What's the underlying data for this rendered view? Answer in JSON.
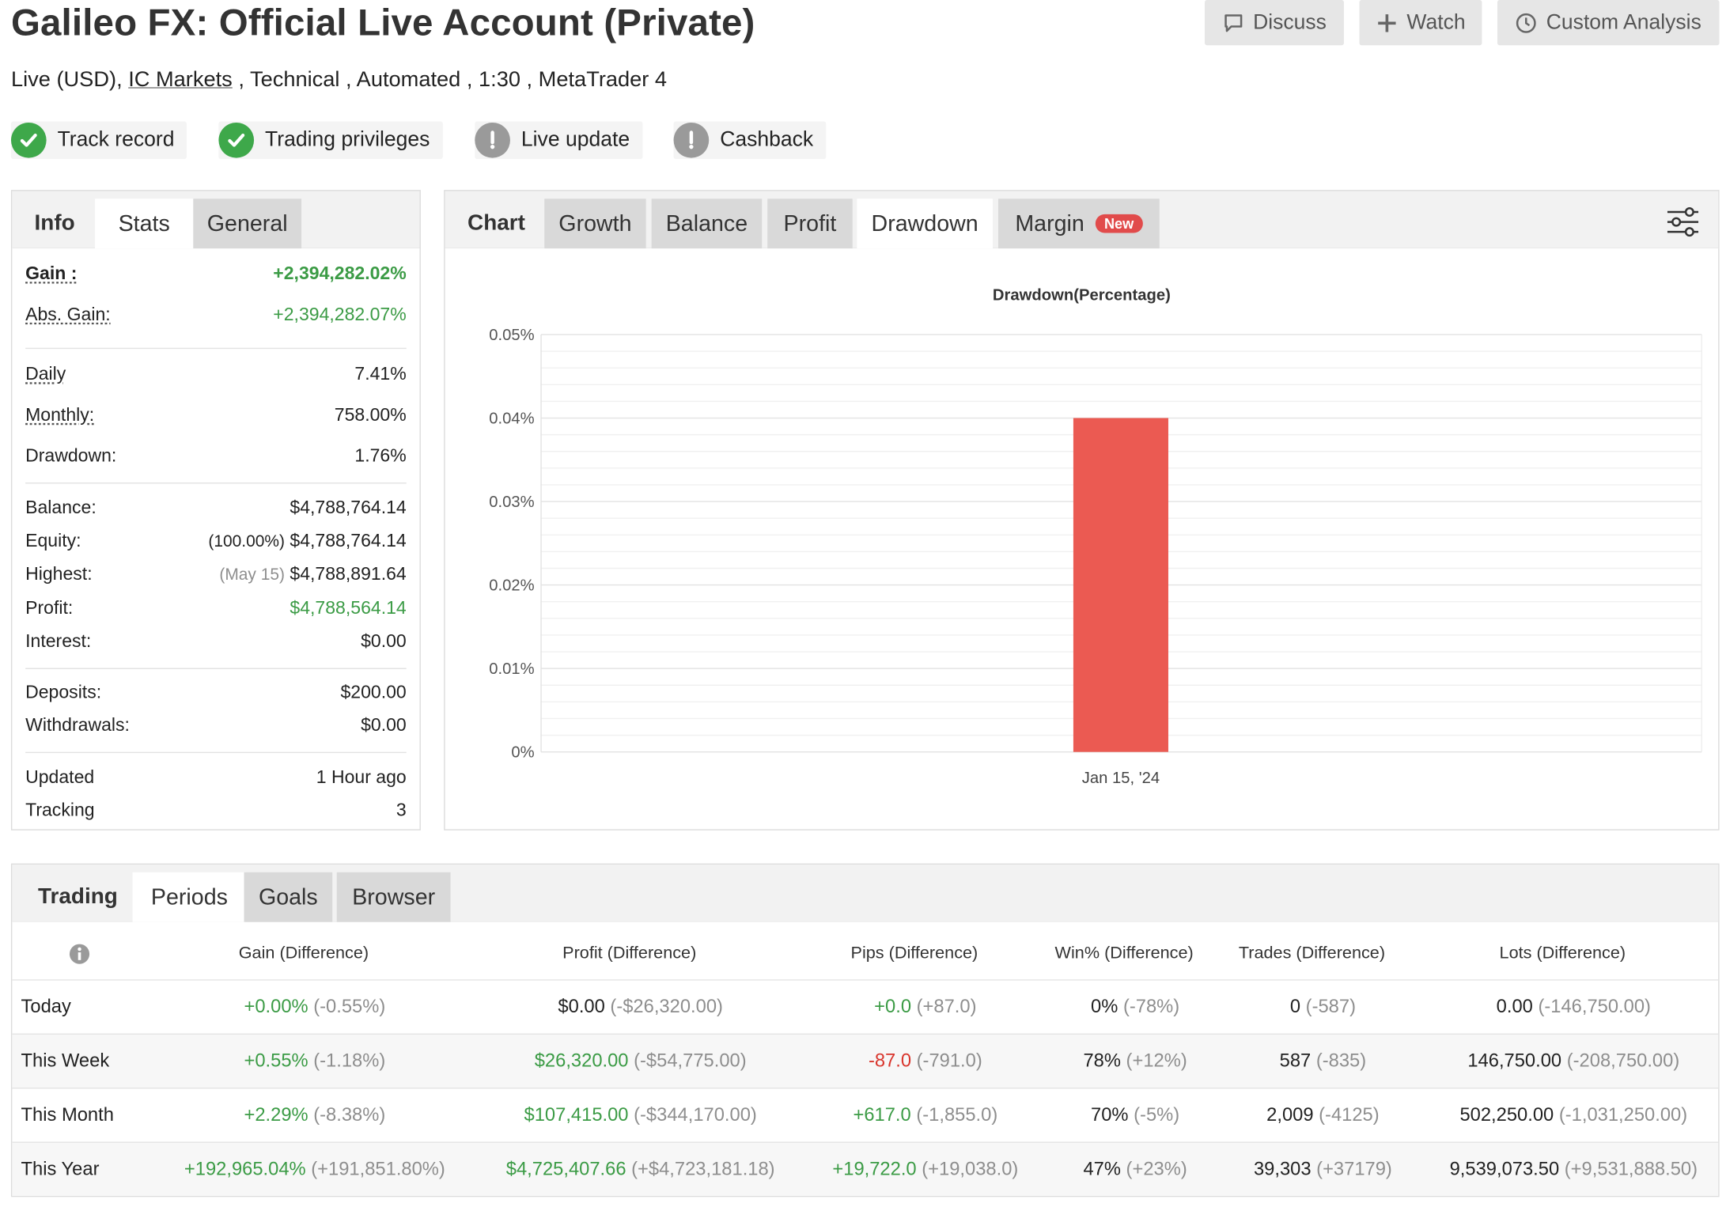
{
  "header": {
    "title": "Galileo FX: Official Live Account (Private)",
    "sub_prefix": "Live (USD), ",
    "broker": "IC Markets",
    "sub_suffix": " , Technical , Automated , 1:30 , MetaTrader 4",
    "buttons": {
      "discuss": "Discuss",
      "watch": "Watch",
      "custom": "Custom Analysis"
    }
  },
  "badges": [
    {
      "label": "Track record",
      "icon": "check-icon",
      "color": "#3ea84a"
    },
    {
      "label": "Trading privileges",
      "icon": "check-icon",
      "color": "#3ea84a"
    },
    {
      "label": "Live update",
      "icon": "exclamation-icon",
      "color": "#9a9a9a"
    },
    {
      "label": "Cashback",
      "icon": "exclamation-icon",
      "color": "#9a9a9a"
    }
  ],
  "info_tabs": [
    "Info",
    "Stats",
    "General"
  ],
  "stats": {
    "gain": {
      "label": "Gain :",
      "value": "+2,394,282.02%"
    },
    "abs_gain": {
      "label": "Abs. Gain:",
      "value": "+2,394,282.07%"
    },
    "daily": {
      "label": "Daily",
      "value": "7.41%"
    },
    "monthly": {
      "label": "Monthly:",
      "value": "758.00%"
    },
    "drawdown": {
      "label": "Drawdown:",
      "value": "1.76%"
    },
    "balance": {
      "label": "Balance:",
      "value": "$4,788,764.14"
    },
    "equity": {
      "label": "Equity:",
      "note": "(100.00%)",
      "value": "$4,788,764.14"
    },
    "highest": {
      "label": "Highest:",
      "note": "(May 15)",
      "value": "$4,788,891.64"
    },
    "profit": {
      "label": "Profit:",
      "value": "$4,788,564.14"
    },
    "interest": {
      "label": "Interest:",
      "value": "$0.00"
    },
    "deposits": {
      "label": "Deposits:",
      "value": "$200.00"
    },
    "withdrawals": {
      "label": "Withdrawals:",
      "value": "$0.00"
    },
    "updated": {
      "label": "Updated",
      "value": "1 Hour ago"
    },
    "tracking": {
      "label": "Tracking",
      "value": "3"
    }
  },
  "chart_tabs": {
    "chart": "Chart",
    "growth": "Growth",
    "balance": "Balance",
    "profit": "Profit",
    "drawdown": "Drawdown",
    "margin": "Margin",
    "new_badge": "New"
  },
  "chart_data": {
    "type": "bar",
    "title": "Drawdown(Percentage)",
    "categories": [
      "Jan 15, '24"
    ],
    "values": [
      0.04
    ],
    "ylim": [
      0,
      0.05
    ],
    "yticks": [
      "0%",
      "0.01%",
      "0.02%",
      "0.03%",
      "0.04%",
      "0.05%"
    ],
    "bar_color": "#eb5a52",
    "grid": true
  },
  "trading_tabs": [
    "Trading",
    "Periods",
    "Goals",
    "Browser"
  ],
  "table": {
    "headers": [
      "Gain (Difference)",
      "Profit (Difference)",
      "Pips (Difference)",
      "Win% (Difference)",
      "Trades (Difference)",
      "Lots (Difference)"
    ],
    "rows": [
      {
        "period": "Today",
        "cells": [
          {
            "v": "+0.00%",
            "d": "(-0.55%)",
            "c": "green"
          },
          {
            "v": "$0.00",
            "d": "(-$26,320.00)",
            "c": "plain"
          },
          {
            "v": "+0.0",
            "d": "(+87.0)",
            "c": "green"
          },
          {
            "v": "0%",
            "d": "(-78%)",
            "c": "plain"
          },
          {
            "v": "0",
            "d": "(-587)",
            "c": "plain"
          },
          {
            "v": "0.00",
            "d": "(-146,750.00)",
            "c": "plain"
          }
        ]
      },
      {
        "period": "This Week",
        "cells": [
          {
            "v": "+0.55%",
            "d": "(-1.18%)",
            "c": "green"
          },
          {
            "v": "$26,320.00",
            "d": "(-$54,775.00)",
            "c": "green"
          },
          {
            "v": "-87.0",
            "d": "(-791.0)",
            "c": "red"
          },
          {
            "v": "78%",
            "d": "(+12%)",
            "c": "plain"
          },
          {
            "v": "587",
            "d": "(-835)",
            "c": "plain"
          },
          {
            "v": "146,750.00",
            "d": "(-208,750.00)",
            "c": "plain"
          }
        ]
      },
      {
        "period": "This Month",
        "cells": [
          {
            "v": "+2.29%",
            "d": "(-8.38%)",
            "c": "green"
          },
          {
            "v": "$107,415.00",
            "d": "(-$344,170.00)",
            "c": "green"
          },
          {
            "v": "+617.0",
            "d": "(-1,855.0)",
            "c": "green"
          },
          {
            "v": "70%",
            "d": "(-5%)",
            "c": "plain"
          },
          {
            "v": "2,009",
            "d": "(-4125)",
            "c": "plain"
          },
          {
            "v": "502,250.00",
            "d": "(-1,031,250.00)",
            "c": "plain"
          }
        ]
      },
      {
        "period": "This Year",
        "cells": [
          {
            "v": "+192,965.04%",
            "d": "(+191,851.80%)",
            "c": "green"
          },
          {
            "v": "$4,725,407.66",
            "d": "(+$4,723,181.18)",
            "c": "green"
          },
          {
            "v": "+19,722.0",
            "d": "(+19,038.0)",
            "c": "green"
          },
          {
            "v": "47%",
            "d": "(+23%)",
            "c": "plain"
          },
          {
            "v": "39,303",
            "d": "(+37179)",
            "c": "plain"
          },
          {
            "v": "9,539,073.50",
            "d": "(+9,531,888.50)",
            "c": "plain"
          }
        ]
      }
    ]
  }
}
